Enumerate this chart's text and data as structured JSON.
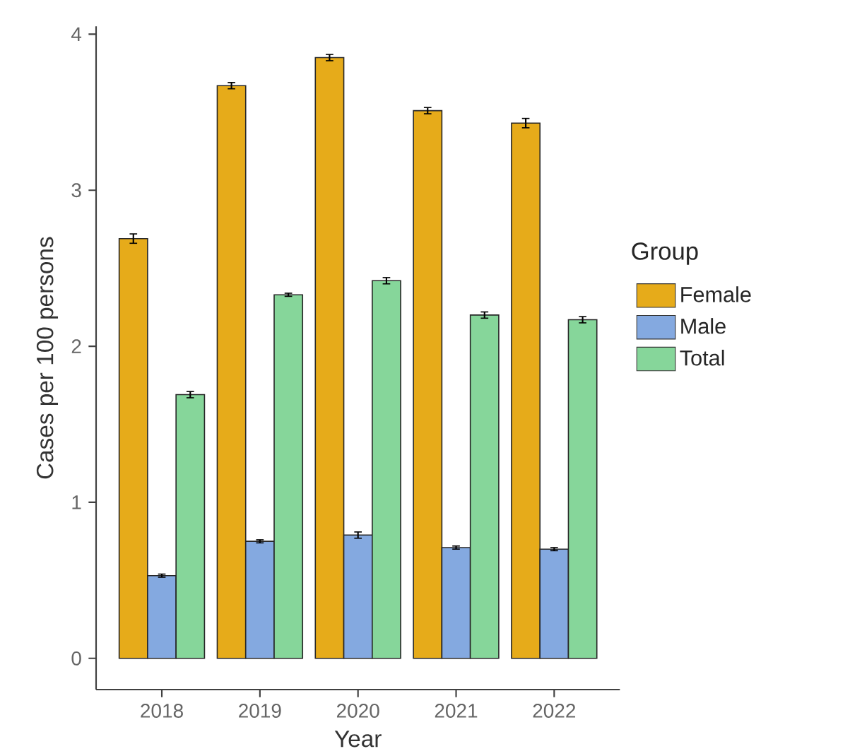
{
  "chart_data": {
    "type": "bar",
    "xlabel": "Year",
    "ylabel": "Cases per 100 persons",
    "legend_title": "Group",
    "categories": [
      "2018",
      "2019",
      "2020",
      "2021",
      "2022"
    ],
    "series": [
      {
        "name": "Female",
        "color": "#e6ab1a",
        "values": [
          2.69,
          3.67,
          3.85,
          3.51,
          3.43
        ],
        "errors": [
          0.03,
          0.02,
          0.02,
          0.02,
          0.03
        ]
      },
      {
        "name": "Male",
        "color": "#84a9e0",
        "values": [
          0.53,
          0.75,
          0.79,
          0.71,
          0.7
        ],
        "errors": [
          0.01,
          0.01,
          0.02,
          0.01,
          0.01
        ]
      },
      {
        "name": "Total",
        "color": "#86d69a",
        "values": [
          1.69,
          2.33,
          2.42,
          2.2,
          2.17
        ],
        "errors": [
          0.02,
          0.01,
          0.02,
          0.02,
          0.02
        ]
      }
    ],
    "ylim": [
      -0.2,
      4.05
    ],
    "yticks": [
      0,
      1,
      2,
      3,
      4
    ],
    "grid": false,
    "legend": "right"
  }
}
